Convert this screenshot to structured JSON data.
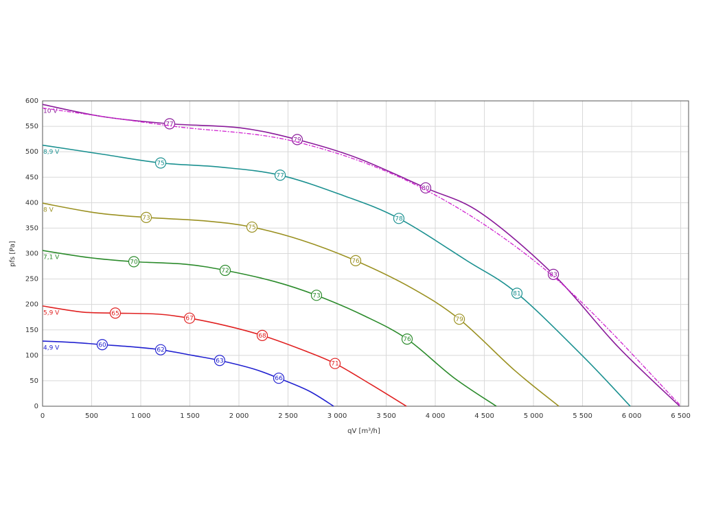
{
  "chart_data": {
    "type": "line",
    "x_label": "qV [m³/h]",
    "y_label": "pfs [Pa]",
    "xlim": [
      0,
      6580
    ],
    "ylim": [
      0,
      600
    ],
    "xticks": [
      0,
      500,
      {
        "value": 1000,
        "label": "1 000"
      },
      {
        "value": 1500,
        "label": "1 500"
      },
      {
        "value": 2000,
        "label": "2 000"
      },
      {
        "value": 2500,
        "label": "2 500"
      },
      {
        "value": 3000,
        "label": "3 000"
      },
      {
        "value": 3500,
        "label": "3 500"
      },
      {
        "value": 4000,
        "label": "4 000"
      },
      {
        "value": 4500,
        "label": "4 500"
      },
      {
        "value": 5000,
        "label": "5 000"
      },
      {
        "value": 5500,
        "label": "5 500"
      },
      {
        "value": 6000,
        "label": "6 000"
      },
      {
        "value": 6500,
        "label": "6 500"
      }
    ],
    "yticks": [
      0,
      50,
      100,
      150,
      200,
      250,
      300,
      350,
      400,
      450,
      500,
      550,
      600
    ],
    "grid": true,
    "series": [
      {
        "name": "10 V",
        "color": "#8a1a9a",
        "x": [
          0,
          615,
          1294,
          2014,
          2594,
          3203,
          3902,
          4462,
          5203,
          5860,
          6490
        ],
        "values": [
          593,
          569,
          555,
          547,
          524,
          488,
          429,
          380,
          259,
          117,
          0
        ],
        "markers": [
          {
            "x": 1294,
            "y": 555,
            "label": 77
          },
          {
            "x": 2594,
            "y": 524,
            "label": 79
          },
          {
            "x": 3902,
            "y": 429,
            "label": 80
          },
          {
            "x": 5203,
            "y": 259,
            "label": 83
          }
        ]
      },
      {
        "color": "#d020d0",
        "dash": "6 2 2 2",
        "x": [
          0,
          1294,
          2594,
          3902,
          5203,
          6490
        ],
        "values": [
          586,
          551,
          519,
          425,
          255,
          3
        ]
      },
      {
        "name": "8,9 V",
        "color": "#1a9090",
        "x": [
          0,
          615,
          1203,
          1804,
          2420,
          3063,
          3629,
          4322,
          4832,
          5510,
          5986
        ],
        "values": [
          513,
          495,
          478,
          470,
          454,
          414,
          369,
          286,
          222,
          97,
          0
        ],
        "markers": [
          {
            "x": 1203,
            "y": 478,
            "label": 75
          },
          {
            "x": 2420,
            "y": 454,
            "label": 77
          },
          {
            "x": 3629,
            "y": 369,
            "label": 78
          },
          {
            "x": 4832,
            "y": 222,
            "label": 81
          }
        ]
      },
      {
        "name": "8 V",
        "color": "#9a9020",
        "x": [
          0,
          545,
          1056,
          1664,
          2133,
          2643,
          3189,
          3762,
          4245,
          4811,
          5259
        ],
        "values": [
          399,
          380,
          371,
          364,
          352,
          326,
          286,
          232,
          171,
          70,
          0
        ],
        "markers": [
          {
            "x": 1056,
            "y": 371,
            "label": 73
          },
          {
            "x": 2133,
            "y": 352,
            "label": 75
          },
          {
            "x": 3189,
            "y": 286,
            "label": 76
          },
          {
            "x": 4245,
            "y": 171,
            "label": 79
          }
        ]
      },
      {
        "name": "7,1 V",
        "color": "#2a8a2a",
        "x": [
          0,
          476,
          930,
          1455,
          1860,
          2364,
          2790,
          3273,
          3713,
          4182,
          4622
        ],
        "values": [
          306,
          292,
          284,
          279,
          267,
          245,
          218,
          178,
          132,
          57,
          0
        ],
        "markers": [
          {
            "x": 930,
            "y": 284,
            "label": 70
          },
          {
            "x": 1860,
            "y": 267,
            "label": 72
          },
          {
            "x": 2790,
            "y": 218,
            "label": 73
          },
          {
            "x": 3713,
            "y": 132,
            "label": 76
          }
        ]
      },
      {
        "name": "5,9 V",
        "color": "#e02020",
        "x": [
          0,
          406,
          741,
          1175,
          1497,
          1874,
          2238,
          2643,
          2979,
          3343,
          3706
        ],
        "values": [
          197,
          185,
          183,
          181,
          173,
          158,
          139,
          111,
          84,
          43,
          0
        ],
        "markers": [
          {
            "x": 741,
            "y": 183,
            "label": 65
          },
          {
            "x": 1497,
            "y": 173,
            "label": 67
          },
          {
            "x": 2238,
            "y": 139,
            "label": 68
          },
          {
            "x": 2979,
            "y": 84,
            "label": 71
          }
        ]
      },
      {
        "name": "4,9 V",
        "color": "#2020d0",
        "x": [
          0,
          336,
          608,
          895,
          1203,
          1524,
          1804,
          2154,
          2406,
          2713,
          2965
        ],
        "values": [
          128,
          125,
          121,
          117,
          111,
          100,
          90,
          73,
          55,
          30,
          0
        ],
        "markers": [
          {
            "x": 608,
            "y": 121,
            "label": 60
          },
          {
            "x": 1203,
            "y": 111,
            "label": 62
          },
          {
            "x": 1804,
            "y": 90,
            "label": 63
          },
          {
            "x": 2406,
            "y": 55,
            "label": 66
          }
        ]
      }
    ]
  }
}
